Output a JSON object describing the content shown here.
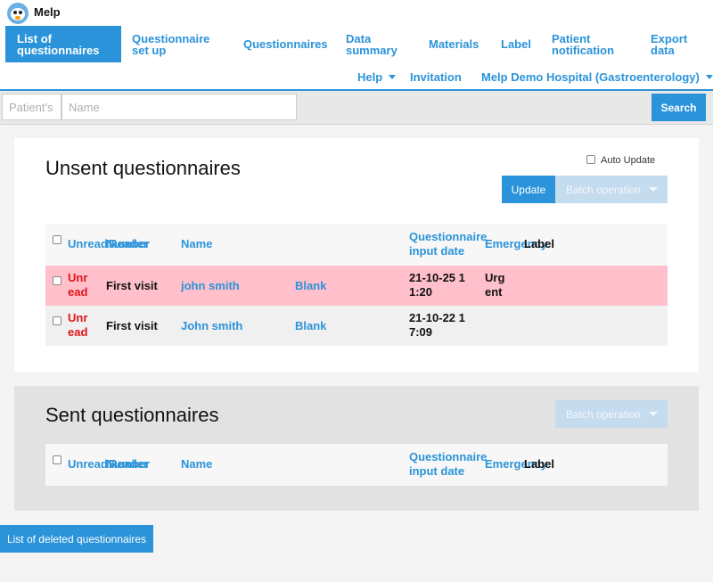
{
  "app": {
    "name": "Melp",
    "logo_icon": "penguin-logo-icon"
  },
  "nav": {
    "active": "List of questionnaires",
    "items": {
      "questionnaire_setup": "Questionnaire set up",
      "questionnaires": "Questionnaires",
      "data_summary": "Data summary",
      "materials": "Materials",
      "label": "Label",
      "patient_notification": "Patient notification",
      "export_data": "Export data",
      "help": "Help",
      "invitation": "Invitation",
      "hospital": "Melp Demo Hospital (Gastroenterology)"
    }
  },
  "search": {
    "patient_placeholder": "Patient's",
    "name_placeholder": "Name",
    "button": "Search"
  },
  "unsent": {
    "title": "Unsent questionnaires",
    "auto_update_label": "Auto Update",
    "update_button": "Update",
    "batch_button": "Batch operation",
    "headers": {
      "unread": "Unread",
      "number": "Number",
      "reader": "Reader",
      "name": "Name",
      "input_date": "Questionnaire input date",
      "emergency": "Emergency",
      "label": "Label"
    },
    "rows": [
      {
        "unread": "Unr ead",
        "reader": "First visit",
        "name": "john smith",
        "questionnaire": "Blank",
        "date": "21-10-25 1 1:20",
        "emergency": "Urg ent",
        "label": ""
      },
      {
        "unread": "Unr ead",
        "reader": "First visit",
        "name": "John smith",
        "questionnaire": "Blank",
        "date": "21-10-22 1 7:09",
        "emergency": "",
        "label": ""
      }
    ]
  },
  "sent": {
    "title": "Sent questionnaires",
    "batch_button": "Batch operation",
    "headers": {
      "unread": "Unread",
      "number": "Number",
      "reader": "Reader",
      "name": "Name",
      "input_date": "Questionnaire input date",
      "emergency": "Emergency",
      "label": "Label"
    }
  },
  "footer": {
    "deleted_button": "List of deleted questionnaires"
  },
  "colors": {
    "accent": "#2b93d9",
    "urgent_row": "#ffc0cb",
    "unread_text": "#e0151c"
  }
}
